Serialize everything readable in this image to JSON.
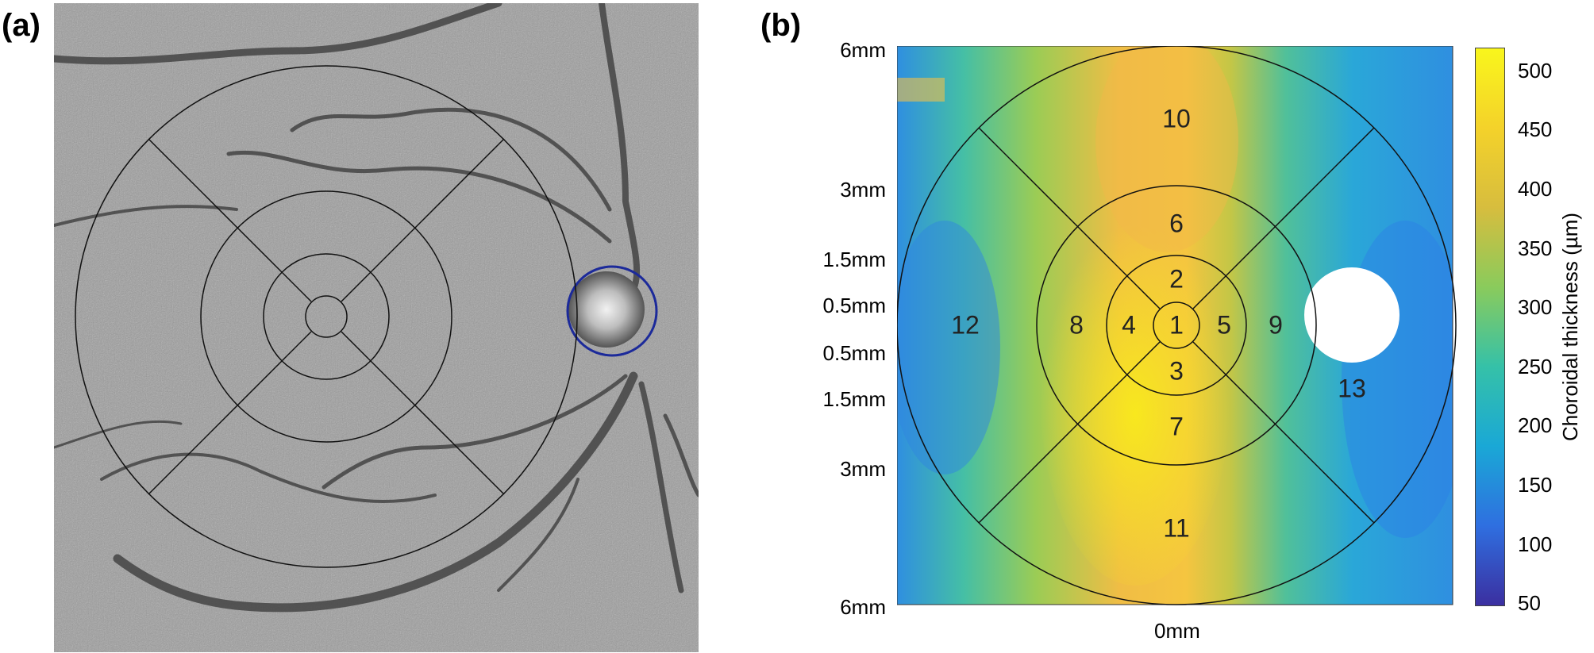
{
  "panels": {
    "a": "(a)",
    "b": "(b)"
  },
  "map": {
    "y_ticks": [
      "6mm",
      "3mm",
      "1.5mm",
      "0.5mm",
      "0.5mm",
      "1.5mm",
      "3mm",
      "6mm"
    ],
    "x_tick": "0mm",
    "sectors": [
      "1",
      "2",
      "3",
      "4",
      "5",
      "6",
      "7",
      "8",
      "9",
      "10",
      "11",
      "12",
      "13"
    ]
  },
  "colorbar": {
    "label": "Choroidal thickness (µm)",
    "ticks": [
      "500",
      "450",
      "400",
      "350",
      "300",
      "250",
      "200",
      "150",
      "100",
      "50"
    ],
    "colors": [
      "#3b2fa0",
      "#2f6fe0",
      "#1aa8d6",
      "#35c1a8",
      "#8acb5c",
      "#d7bd3e",
      "#f4d22a",
      "#f9f61c"
    ]
  },
  "fundus": {
    "disc_ring_color": "#1c2a9a"
  }
}
